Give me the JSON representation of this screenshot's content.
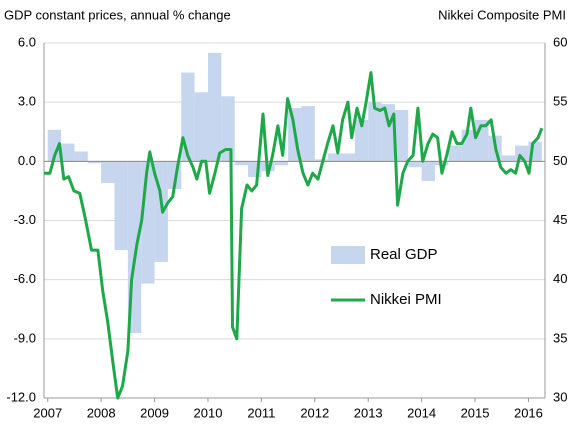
{
  "chart_data": {
    "type": "bar-line",
    "y_label": "GDP constant prices, annual % change",
    "y2_label": "Nikkei Composite PMI",
    "xlim": [
      2006.93,
      2016.31
    ],
    "xticks": [
      2007,
      2008,
      2009,
      2010,
      2011,
      2012,
      2013,
      2014,
      2015,
      2016
    ],
    "ylim": [
      -12,
      6
    ],
    "yticks": [
      {
        "value": 6,
        "label": "6.0"
      },
      {
        "value": 3,
        "label": "3.0"
      },
      {
        "value": 0,
        "label": "0.0"
      },
      {
        "value": -3,
        "label": "-3.0"
      },
      {
        "value": -6,
        "label": "-6.0"
      },
      {
        "value": -9,
        "label": "-9.0"
      },
      {
        "value": -12,
        "label": "-12.0"
      }
    ],
    "y2lim": [
      30,
      60
    ],
    "y2ticks": [
      30,
      35,
      40,
      45,
      50,
      55,
      60
    ],
    "grid": true,
    "series": [
      {
        "name": "Real GDP",
        "type": "bar",
        "color": "#c6d6ef",
        "x": [
          2007,
          2007.25,
          2007.5,
          2007.75,
          2008,
          2008.25,
          2008.5,
          2008.75,
          2009,
          2009.25,
          2009.5,
          2009.75,
          2010,
          2010.25,
          2010.5,
          2010.75,
          2011,
          2011.25,
          2011.5,
          2011.75,
          2012,
          2012.25,
          2012.5,
          2012.75,
          2013,
          2013.25,
          2013.5,
          2013.75,
          2014,
          2014.25,
          2014.5,
          2014.75,
          2015,
          2015.25,
          2015.5,
          2015.75,
          2016
        ],
        "values": [
          1.6,
          0.9,
          0.5,
          -0.1,
          -1.1,
          -4.5,
          -8.7,
          -6.2,
          -5.1,
          -1.4,
          4.5,
          3.5,
          5.5,
          3.3,
          -0.2,
          -0.8,
          -0.5,
          -0.2,
          2.7,
          2.8,
          0.1,
          0.4,
          0.4,
          2.1,
          3.0,
          2.9,
          2.6,
          -0.3,
          -1.0,
          -0.2,
          0.8,
          1.6,
          2.1,
          1.3,
          0.3,
          0.8,
          1.0
        ]
      },
      {
        "name": "Nikkei PMI",
        "type": "line",
        "axis": "y2",
        "color": "#1fa84a",
        "x": [
          2006.93,
          2007.04,
          2007.13,
          2007.22,
          2007.3,
          2007.39,
          2007.49,
          2007.6,
          2007.71,
          2007.82,
          2007.94,
          2008.03,
          2008.12,
          2008.22,
          2008.31,
          2008.4,
          2008.5,
          2008.57,
          2008.67,
          2008.76,
          2008.85,
          2008.91,
          2009.0,
          2009.1,
          2009.15,
          2009.25,
          2009.34,
          2009.43,
          2009.53,
          2009.62,
          2009.72,
          2009.79,
          2009.88,
          2009.96,
          2010.03,
          2010.13,
          2010.22,
          2010.33,
          2010.43,
          2010.46,
          2010.54,
          2010.63,
          2010.73,
          2010.82,
          2010.91,
          2011.03,
          2011.12,
          2011.21,
          2011.31,
          2011.4,
          2011.49,
          2011.59,
          2011.68,
          2011.78,
          2011.87,
          2011.96,
          2012.06,
          2012.15,
          2012.24,
          2012.34,
          2012.43,
          2012.52,
          2012.62,
          2012.69,
          2012.79,
          2012.88,
          2012.96,
          2013.05,
          2013.12,
          2013.22,
          2013.31,
          2013.39,
          2013.48,
          2013.55,
          2013.65,
          2013.74,
          2013.84,
          2013.93,
          2014.02,
          2014.12,
          2014.21,
          2014.3,
          2014.38,
          2014.47,
          2014.57,
          2014.66,
          2014.75,
          2014.85,
          2014.92,
          2015.01,
          2015.11,
          2015.2,
          2015.3,
          2015.39,
          2015.48,
          2015.58,
          2015.67,
          2015.76,
          2015.84,
          2015.93,
          2016.01,
          2016.08,
          2016.18,
          2016.25
        ],
        "values": [
          49,
          49,
          50.5,
          51.5,
          48.5,
          48.7,
          47.5,
          47.3,
          45,
          42.5,
          42.5,
          39,
          36.5,
          33,
          30,
          31,
          34,
          40,
          43,
          45,
          49,
          50.8,
          49,
          47.5,
          45.7,
          46.5,
          47,
          49.5,
          52,
          50.5,
          49.5,
          48.5,
          50,
          50,
          47.3,
          49,
          50.7,
          51,
          51,
          36,
          35,
          46,
          48,
          47.5,
          48,
          54,
          48.8,
          50.5,
          53,
          50.5,
          55.3,
          53.5,
          51,
          49,
          48,
          49,
          48.5,
          50,
          51.5,
          53,
          50.7,
          53.5,
          55,
          52,
          54.5,
          53,
          55,
          57.5,
          54.5,
          54.3,
          54.5,
          53,
          54,
          46.3,
          49,
          50,
          50.5,
          54.5,
          50,
          51.5,
          52.3,
          52,
          49,
          50.5,
          52.5,
          51.5,
          51.5,
          52.3,
          54.5,
          52,
          53,
          53,
          53.5,
          51,
          49.5,
          49,
          49.3,
          49,
          50.5,
          50,
          49,
          51.5,
          52,
          52.8
        ]
      }
    ]
  }
}
